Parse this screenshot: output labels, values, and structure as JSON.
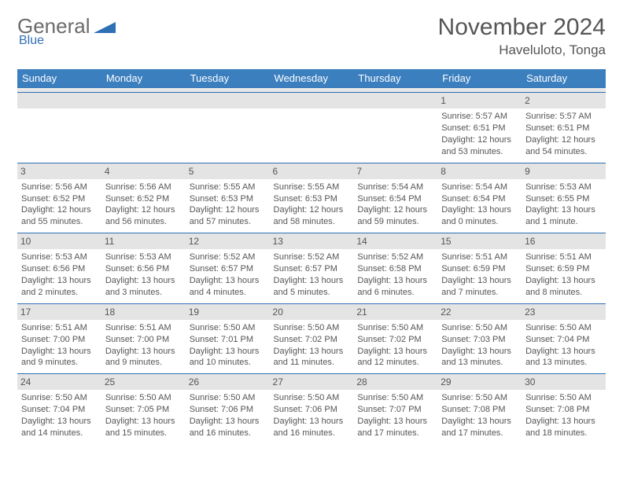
{
  "logo": {
    "primary": "General",
    "secondary": "Blue"
  },
  "title": "November 2024",
  "location": "Haveluloto, Tonga",
  "colors": {
    "header_bg": "#3b7fbf",
    "header_text": "#ffffff",
    "daynum_bg": "#e4e4e4",
    "border": "#2f6fb3",
    "text": "#555555",
    "logo_gray": "#6b6b6b",
    "logo_blue": "#2f6fb3"
  },
  "weekdays": [
    "Sunday",
    "Monday",
    "Tuesday",
    "Wednesday",
    "Thursday",
    "Friday",
    "Saturday"
  ],
  "weeks": [
    [
      null,
      null,
      null,
      null,
      null,
      {
        "n": "1",
        "sr": "Sunrise: 5:57 AM",
        "ss": "Sunset: 6:51 PM",
        "dl1": "Daylight: 12 hours",
        "dl2": "and 53 minutes."
      },
      {
        "n": "2",
        "sr": "Sunrise: 5:57 AM",
        "ss": "Sunset: 6:51 PM",
        "dl1": "Daylight: 12 hours",
        "dl2": "and 54 minutes."
      }
    ],
    [
      {
        "n": "3",
        "sr": "Sunrise: 5:56 AM",
        "ss": "Sunset: 6:52 PM",
        "dl1": "Daylight: 12 hours",
        "dl2": "and 55 minutes."
      },
      {
        "n": "4",
        "sr": "Sunrise: 5:56 AM",
        "ss": "Sunset: 6:52 PM",
        "dl1": "Daylight: 12 hours",
        "dl2": "and 56 minutes."
      },
      {
        "n": "5",
        "sr": "Sunrise: 5:55 AM",
        "ss": "Sunset: 6:53 PM",
        "dl1": "Daylight: 12 hours",
        "dl2": "and 57 minutes."
      },
      {
        "n": "6",
        "sr": "Sunrise: 5:55 AM",
        "ss": "Sunset: 6:53 PM",
        "dl1": "Daylight: 12 hours",
        "dl2": "and 58 minutes."
      },
      {
        "n": "7",
        "sr": "Sunrise: 5:54 AM",
        "ss": "Sunset: 6:54 PM",
        "dl1": "Daylight: 12 hours",
        "dl2": "and 59 minutes."
      },
      {
        "n": "8",
        "sr": "Sunrise: 5:54 AM",
        "ss": "Sunset: 6:54 PM",
        "dl1": "Daylight: 13 hours",
        "dl2": "and 0 minutes."
      },
      {
        "n": "9",
        "sr": "Sunrise: 5:53 AM",
        "ss": "Sunset: 6:55 PM",
        "dl1": "Daylight: 13 hours",
        "dl2": "and 1 minute."
      }
    ],
    [
      {
        "n": "10",
        "sr": "Sunrise: 5:53 AM",
        "ss": "Sunset: 6:56 PM",
        "dl1": "Daylight: 13 hours",
        "dl2": "and 2 minutes."
      },
      {
        "n": "11",
        "sr": "Sunrise: 5:53 AM",
        "ss": "Sunset: 6:56 PM",
        "dl1": "Daylight: 13 hours",
        "dl2": "and 3 minutes."
      },
      {
        "n": "12",
        "sr": "Sunrise: 5:52 AM",
        "ss": "Sunset: 6:57 PM",
        "dl1": "Daylight: 13 hours",
        "dl2": "and 4 minutes."
      },
      {
        "n": "13",
        "sr": "Sunrise: 5:52 AM",
        "ss": "Sunset: 6:57 PM",
        "dl1": "Daylight: 13 hours",
        "dl2": "and 5 minutes."
      },
      {
        "n": "14",
        "sr": "Sunrise: 5:52 AM",
        "ss": "Sunset: 6:58 PM",
        "dl1": "Daylight: 13 hours",
        "dl2": "and 6 minutes."
      },
      {
        "n": "15",
        "sr": "Sunrise: 5:51 AM",
        "ss": "Sunset: 6:59 PM",
        "dl1": "Daylight: 13 hours",
        "dl2": "and 7 minutes."
      },
      {
        "n": "16",
        "sr": "Sunrise: 5:51 AM",
        "ss": "Sunset: 6:59 PM",
        "dl1": "Daylight: 13 hours",
        "dl2": "and 8 minutes."
      }
    ],
    [
      {
        "n": "17",
        "sr": "Sunrise: 5:51 AM",
        "ss": "Sunset: 7:00 PM",
        "dl1": "Daylight: 13 hours",
        "dl2": "and 9 minutes."
      },
      {
        "n": "18",
        "sr": "Sunrise: 5:51 AM",
        "ss": "Sunset: 7:00 PM",
        "dl1": "Daylight: 13 hours",
        "dl2": "and 9 minutes."
      },
      {
        "n": "19",
        "sr": "Sunrise: 5:50 AM",
        "ss": "Sunset: 7:01 PM",
        "dl1": "Daylight: 13 hours",
        "dl2": "and 10 minutes."
      },
      {
        "n": "20",
        "sr": "Sunrise: 5:50 AM",
        "ss": "Sunset: 7:02 PM",
        "dl1": "Daylight: 13 hours",
        "dl2": "and 11 minutes."
      },
      {
        "n": "21",
        "sr": "Sunrise: 5:50 AM",
        "ss": "Sunset: 7:02 PM",
        "dl1": "Daylight: 13 hours",
        "dl2": "and 12 minutes."
      },
      {
        "n": "22",
        "sr": "Sunrise: 5:50 AM",
        "ss": "Sunset: 7:03 PM",
        "dl1": "Daylight: 13 hours",
        "dl2": "and 13 minutes."
      },
      {
        "n": "23",
        "sr": "Sunrise: 5:50 AM",
        "ss": "Sunset: 7:04 PM",
        "dl1": "Daylight: 13 hours",
        "dl2": "and 13 minutes."
      }
    ],
    [
      {
        "n": "24",
        "sr": "Sunrise: 5:50 AM",
        "ss": "Sunset: 7:04 PM",
        "dl1": "Daylight: 13 hours",
        "dl2": "and 14 minutes."
      },
      {
        "n": "25",
        "sr": "Sunrise: 5:50 AM",
        "ss": "Sunset: 7:05 PM",
        "dl1": "Daylight: 13 hours",
        "dl2": "and 15 minutes."
      },
      {
        "n": "26",
        "sr": "Sunrise: 5:50 AM",
        "ss": "Sunset: 7:06 PM",
        "dl1": "Daylight: 13 hours",
        "dl2": "and 16 minutes."
      },
      {
        "n": "27",
        "sr": "Sunrise: 5:50 AM",
        "ss": "Sunset: 7:06 PM",
        "dl1": "Daylight: 13 hours",
        "dl2": "and 16 minutes."
      },
      {
        "n": "28",
        "sr": "Sunrise: 5:50 AM",
        "ss": "Sunset: 7:07 PM",
        "dl1": "Daylight: 13 hours",
        "dl2": "and 17 minutes."
      },
      {
        "n": "29",
        "sr": "Sunrise: 5:50 AM",
        "ss": "Sunset: 7:08 PM",
        "dl1": "Daylight: 13 hours",
        "dl2": "and 17 minutes."
      },
      {
        "n": "30",
        "sr": "Sunrise: 5:50 AM",
        "ss": "Sunset: 7:08 PM",
        "dl1": "Daylight: 13 hours",
        "dl2": "and 18 minutes."
      }
    ]
  ]
}
